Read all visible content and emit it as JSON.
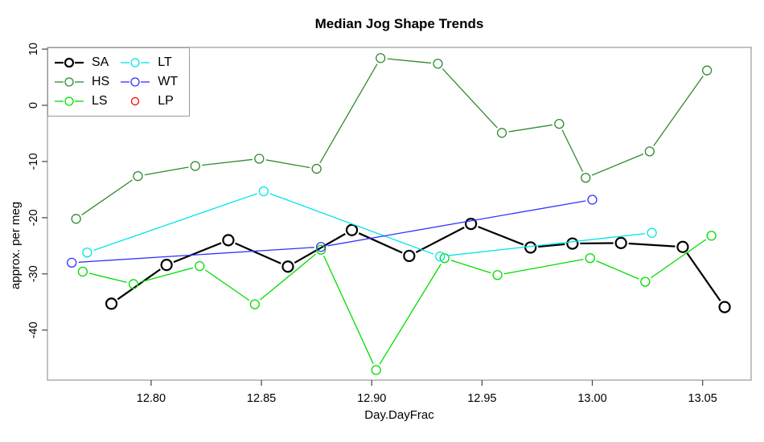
{
  "title": "Median Jog Shape Trends",
  "chart_data": {
    "type": "line",
    "title": "Median Jog Shape Trends",
    "xlabel": "Day.DayFrac",
    "ylabel": "approx. per meg",
    "xlim": [
      12.753,
      13.072
    ],
    "ylim": [
      -48.9,
      10.3
    ],
    "grid": false,
    "legend_position": "topleft",
    "box_color": "#9a9a9a",
    "tick_color": "#444444",
    "x_ticks": [
      12.8,
      12.85,
      12.9,
      12.95,
      13.0,
      13.05
    ],
    "x_tick_labels": [
      "12.80",
      "12.85",
      "12.90",
      "12.95",
      "13.00",
      "13.05"
    ],
    "y_ticks": [
      10,
      0,
      -10,
      -20,
      -30,
      -40
    ],
    "y_tick_labels": [
      "10",
      "0",
      "-10",
      "-20",
      "-30",
      "-40"
    ],
    "series": [
      {
        "name": "SA",
        "color": "#000000",
        "line_width": 2.2,
        "marker": "circle-open",
        "marker_radius": 6.5,
        "line": true,
        "points": [
          [
            12.782,
            -35.3
          ],
          [
            12.807,
            -28.4
          ],
          [
            12.835,
            -24.0
          ],
          [
            12.862,
            -28.7
          ],
          [
            12.891,
            -22.2
          ],
          [
            12.917,
            -26.8
          ],
          [
            12.945,
            -21.1
          ],
          [
            12.972,
            -25.3
          ],
          [
            12.991,
            -24.6
          ],
          [
            13.013,
            -24.5
          ],
          [
            13.041,
            -25.2
          ],
          [
            13.06,
            -35.9
          ]
        ]
      },
      {
        "name": "HS",
        "color": "#2E8B2E",
        "line_width": 1.3,
        "marker": "circle-open",
        "marker_radius": 5.5,
        "line": true,
        "points": [
          [
            12.766,
            -20.2
          ],
          [
            12.794,
            -12.6
          ],
          [
            12.82,
            -10.8
          ],
          [
            12.849,
            -9.5
          ],
          [
            12.875,
            -11.3
          ],
          [
            12.904,
            8.4
          ],
          [
            12.93,
            7.4
          ],
          [
            12.959,
            -4.9
          ],
          [
            12.985,
            -3.3
          ],
          [
            12.997,
            -12.9
          ],
          [
            13.026,
            -8.2
          ],
          [
            13.052,
            6.2
          ]
        ]
      },
      {
        "name": "LS",
        "color": "#00DD00",
        "line_width": 1.3,
        "marker": "circle-open",
        "marker_radius": 5.5,
        "line": true,
        "points": [
          [
            12.769,
            -29.6
          ],
          [
            12.792,
            -31.8
          ],
          [
            12.822,
            -28.6
          ],
          [
            12.847,
            -35.4
          ],
          [
            12.877,
            -25.7
          ],
          [
            12.902,
            -47.1
          ],
          [
            12.933,
            -27.2
          ],
          [
            12.957,
            -30.2
          ],
          [
            12.999,
            -27.2
          ],
          [
            13.024,
            -31.4
          ],
          [
            13.054,
            -23.2
          ]
        ]
      },
      {
        "name": "LT",
        "color": "#00E5E5",
        "line_width": 1.3,
        "marker": "circle-open",
        "marker_radius": 5.5,
        "line": true,
        "points": [
          [
            12.771,
            -26.2
          ],
          [
            12.851,
            -15.3
          ],
          [
            12.931,
            -26.9
          ],
          [
            13.027,
            -22.7
          ]
        ]
      },
      {
        "name": "WT",
        "color": "#3333FF",
        "line_width": 1.3,
        "marker": "circle-open",
        "marker_radius": 5.5,
        "line": true,
        "points": [
          [
            12.764,
            -28.0
          ],
          [
            12.877,
            -25.2
          ],
          [
            13.0,
            -16.8
          ]
        ]
      },
      {
        "name": "LP",
        "color": "#FF0000",
        "line_width": 1.3,
        "marker": "circle-open",
        "marker_radius": 4.5,
        "line": false,
        "points": []
      }
    ]
  }
}
